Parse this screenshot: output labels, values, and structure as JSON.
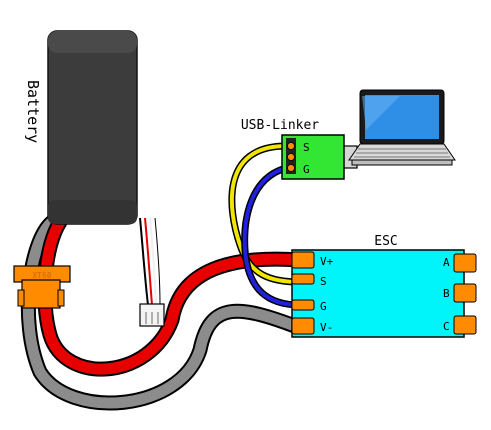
{
  "battery": {
    "label": "Battery",
    "connector_label": "XT60"
  },
  "usb_linker": {
    "title": "USB-Linker",
    "pins": [
      "S",
      "G"
    ]
  },
  "esc": {
    "title": "ESC",
    "left_pins": [
      "V+",
      "S",
      "G",
      "V-"
    ],
    "right_pins": [
      "A",
      "B",
      "C"
    ]
  },
  "icons": {
    "computer": "laptop-icon"
  },
  "colors": {
    "battery_body": "#3c3c3c",
    "esc_board": "#00f5fa",
    "usb_board": "#33e633",
    "pads": "#ff8c00",
    "wire_power_pos": "#e60000",
    "wire_power_neg": "#8c8c8c",
    "wire_signal": "#f0e600",
    "wire_ground": "#2020dd",
    "laptop_screen": "#2f8fe6"
  }
}
